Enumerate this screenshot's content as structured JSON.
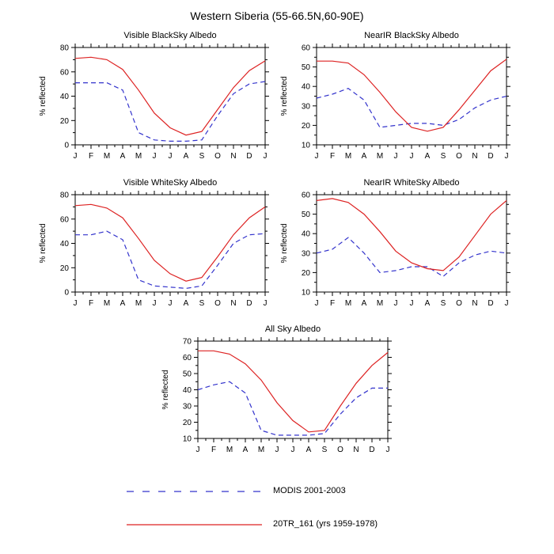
{
  "title": "Western Siberia (55-66.5N,60-90E)",
  "months": [
    "J",
    "F",
    "M",
    "A",
    "M",
    "J",
    "J",
    "A",
    "S",
    "O",
    "N",
    "D",
    "J"
  ],
  "colors": {
    "modis_blue": "#3333cc",
    "model_red": "#dd2222"
  },
  "legend": [
    {
      "id": "modis",
      "label": "MODIS 2001-2003",
      "color": "#3333cc",
      "dash": "9,11"
    },
    {
      "id": "model",
      "label": "20TR_161 (yrs 1959-1978)",
      "color": "#dd2222",
      "dash": ""
    }
  ],
  "chart_data": [
    {
      "type": "line",
      "title": "Visible BlackSky Albedo",
      "ylabel": "% reflected",
      "ylim": [
        0,
        80
      ],
      "yticks": [
        0,
        20,
        40,
        60,
        80
      ],
      "x": [
        "J",
        "F",
        "M",
        "A",
        "M",
        "J",
        "J",
        "A",
        "S",
        "O",
        "N",
        "D",
        "J"
      ],
      "series": [
        {
          "id": "modis",
          "name": "MODIS 2001-2003",
          "color": "#3333cc",
          "dash": "6,4",
          "values": [
            51,
            51,
            51,
            45,
            10,
            4,
            3,
            3,
            4,
            24,
            42,
            50,
            52
          ]
        },
        {
          "id": "model",
          "name": "20TR_161 (yrs 1959-1978)",
          "color": "#dd2222",
          "dash": "",
          "values": [
            71,
            72,
            70,
            62,
            45,
            26,
            14,
            8,
            11,
            29,
            47,
            61,
            69
          ]
        }
      ]
    },
    {
      "type": "line",
      "title": "NearIR BlackSky Albedo",
      "ylabel": "% reflected",
      "ylim": [
        10,
        60
      ],
      "yticks": [
        10,
        20,
        30,
        40,
        50,
        60
      ],
      "x": [
        "J",
        "F",
        "M",
        "A",
        "M",
        "J",
        "J",
        "A",
        "S",
        "O",
        "N",
        "D",
        "J"
      ],
      "series": [
        {
          "id": "modis",
          "name": "MODIS 2001-2003",
          "color": "#3333cc",
          "dash": "6,4",
          "values": [
            34,
            36,
            39,
            33,
            19,
            20,
            21,
            21,
            20,
            23,
            29,
            33,
            35
          ]
        },
        {
          "id": "model",
          "name": "20TR_161 (yrs 1959-1978)",
          "color": "#dd2222",
          "dash": "",
          "values": [
            53,
            53,
            52,
            46,
            37,
            27,
            19,
            17,
            19,
            28,
            38,
            48,
            54
          ]
        }
      ]
    },
    {
      "type": "line",
      "title": "Visible WhiteSky Albedo",
      "ylabel": "% reflected",
      "ylim": [
        0,
        80
      ],
      "yticks": [
        0,
        20,
        40,
        60,
        80
      ],
      "x": [
        "J",
        "F",
        "M",
        "A",
        "M",
        "J",
        "J",
        "A",
        "S",
        "O",
        "N",
        "D",
        "J"
      ],
      "series": [
        {
          "id": "modis",
          "name": "MODIS 2001-2003",
          "color": "#3333cc",
          "dash": "6,4",
          "values": [
            47,
            47,
            50,
            43,
            10,
            5,
            4,
            3,
            5,
            22,
            40,
            47,
            48
          ]
        },
        {
          "id": "model",
          "name": "20TR_161 (yrs 1959-1978)",
          "color": "#dd2222",
          "dash": "",
          "values": [
            71,
            72,
            69,
            61,
            44,
            26,
            15,
            9,
            12,
            29,
            47,
            61,
            70
          ]
        }
      ]
    },
    {
      "type": "line",
      "title": "NearIR WhiteSky Albedo",
      "ylabel": "% reflected",
      "ylim": [
        10,
        60
      ],
      "yticks": [
        10,
        20,
        30,
        40,
        50,
        60
      ],
      "x": [
        "J",
        "F",
        "M",
        "A",
        "M",
        "J",
        "J",
        "A",
        "S",
        "O",
        "N",
        "D",
        "J"
      ],
      "series": [
        {
          "id": "modis",
          "name": "MODIS 2001-2003",
          "color": "#3333cc",
          "dash": "6,4",
          "values": [
            30,
            32,
            38,
            30,
            20,
            21,
            23,
            23,
            18,
            25,
            29,
            31,
            30
          ]
        },
        {
          "id": "model",
          "name": "20TR_161 (yrs 1959-1978)",
          "color": "#dd2222",
          "dash": "",
          "values": [
            57,
            58,
            56,
            50,
            41,
            31,
            25,
            22,
            21,
            28,
            39,
            50,
            57
          ]
        }
      ]
    },
    {
      "type": "line",
      "title": "All Sky Albedo",
      "ylabel": "% reflected",
      "ylim": [
        10,
        70
      ],
      "yticks": [
        10,
        20,
        30,
        40,
        50,
        60,
        70
      ],
      "x": [
        "J",
        "F",
        "M",
        "A",
        "M",
        "J",
        "J",
        "A",
        "S",
        "O",
        "N",
        "D",
        "J"
      ],
      "series": [
        {
          "id": "modis",
          "name": "MODIS 2001-2003",
          "color": "#3333cc",
          "dash": "6,4",
          "values": [
            40,
            43,
            45,
            38,
            15,
            12,
            12,
            12,
            13,
            25,
            35,
            41,
            41
          ]
        },
        {
          "id": "model",
          "name": "20TR_161 (yrs 1959-1978)",
          "color": "#dd2222",
          "dash": "",
          "values": [
            64,
            64,
            62,
            56,
            46,
            32,
            21,
            14,
            15,
            30,
            44,
            55,
            63
          ]
        }
      ]
    }
  ]
}
